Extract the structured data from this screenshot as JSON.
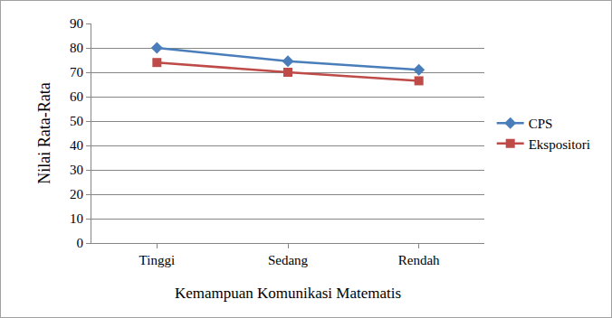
{
  "chart_data": {
    "type": "line",
    "x_label": "Kemampuan Komunikasi Matematis",
    "y_label": "Nilai Rata-Rata",
    "categories": [
      "Tinggi",
      "Sedang",
      "Rendah"
    ],
    "series": [
      {
        "name": "CPS",
        "color": "#4a7ebb",
        "marker": "diamond",
        "values": [
          80,
          74.5,
          71
        ]
      },
      {
        "name": "Ekspositori",
        "color": "#be4b48",
        "marker": "square",
        "values": [
          74,
          70,
          66.5
        ]
      }
    ],
    "ylim": [
      0,
      90
    ],
    "yticks": [
      0,
      10,
      20,
      30,
      40,
      50,
      60,
      70,
      80,
      90
    ],
    "grid": true,
    "legend": "right"
  }
}
